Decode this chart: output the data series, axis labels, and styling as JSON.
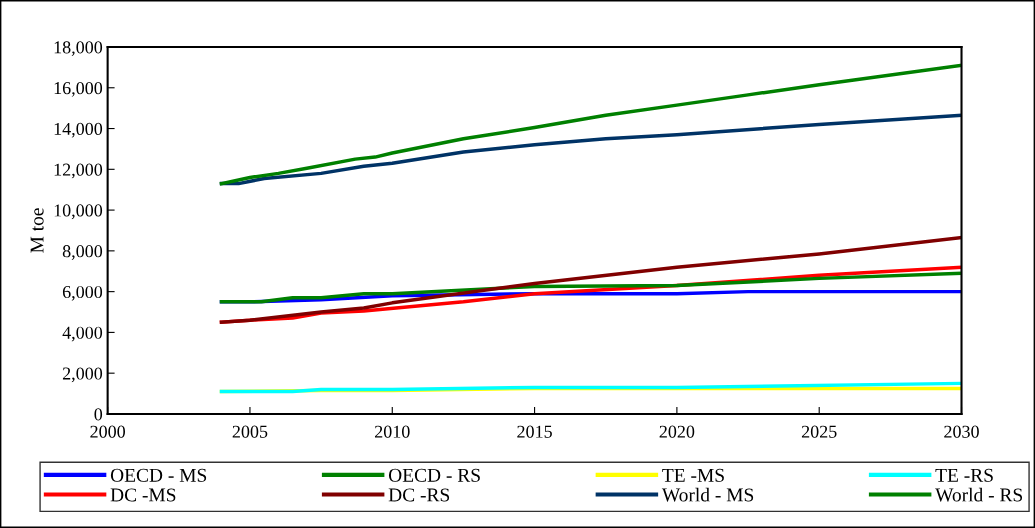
{
  "chart_data": {
    "type": "line",
    "ylabel": "M toe",
    "xlim": [
      2000,
      2030
    ],
    "xticks": [
      2000,
      2005,
      2010,
      2015,
      2020,
      2025,
      2030
    ],
    "ylim": [
      0,
      18000
    ],
    "yticks": [
      {
        "value": 0,
        "label": "0"
      },
      {
        "value": 2000,
        "label": "2,000"
      },
      {
        "value": 4000,
        "label": "4,000"
      },
      {
        "value": 6000,
        "label": "6,000"
      },
      {
        "value": 8000,
        "label": "8,000"
      },
      {
        "value": 10000,
        "label": "10,000"
      },
      {
        "value": 12000,
        "label": "12,000"
      },
      {
        "value": 14000,
        "label": "14,000"
      },
      {
        "value": 16000,
        "label": "16,000"
      },
      {
        "value": 18000,
        "label": "18,000"
      }
    ],
    "grid": false,
    "legend": "bottom",
    "marker": "none",
    "line_style": "solid",
    "series": [
      {
        "name": "OECD - MS",
        "color": "#0000ff",
        "x": [
          2004,
          2005,
          2007.5,
          2010,
          2015,
          2020,
          2022.5,
          2030
        ],
        "values": [
          5500,
          5500,
          5600,
          5800,
          5900,
          5900,
          6000,
          6000
        ]
      },
      {
        "name": "DC -MS",
        "color": "#ff0000",
        "x": [
          2004,
          2005,
          2006.5,
          2007.5,
          2009,
          2012.5,
          2015,
          2020,
          2025,
          2030
        ],
        "values": [
          4500,
          4600,
          4700,
          4950,
          5050,
          5500,
          5900,
          6300,
          6800,
          7200
        ]
      },
      {
        "name": "OECD - RS",
        "color": "#008000",
        "x": [
          2004,
          2005.4,
          2006.5,
          2007.5,
          2009,
          2010,
          2015,
          2020,
          2025,
          2030
        ],
        "values": [
          5500,
          5500,
          5700,
          5700,
          5900,
          5900,
          6250,
          6300,
          6650,
          6900
        ]
      },
      {
        "name": "DC -RS",
        "color": "#800000",
        "x": [
          2004,
          2005,
          2007.5,
          2009,
          2010,
          2015,
          2020,
          2025,
          2030
        ],
        "values": [
          4500,
          4600,
          5000,
          5200,
          5450,
          6400,
          7200,
          7850,
          8650
        ]
      },
      {
        "name": "TE -MS",
        "color": "#ffff00",
        "x": [
          2004,
          2007.5,
          2010,
          2015,
          2030
        ],
        "values": [
          1100,
          1150,
          1150,
          1250,
          1250
        ]
      },
      {
        "name": "World - MS",
        "color": "#003366",
        "x": [
          2004,
          2004.6,
          2005.5,
          2007.5,
          2009,
          2010,
          2012.5,
          2015,
          2017.5,
          2020,
          2025,
          2030
        ],
        "values": [
          11300,
          11300,
          11550,
          11800,
          12150,
          12300,
          12850,
          13200,
          13500,
          13700,
          14200,
          14650
        ]
      },
      {
        "name": "TE -RS",
        "color": "#00ffff",
        "x": [
          2004,
          2006.5,
          2007.5,
          2010,
          2015,
          2020,
          2030
        ],
        "values": [
          1100,
          1100,
          1200,
          1200,
          1300,
          1300,
          1500
        ]
      },
      {
        "name": "World - RS",
        "color": "#008000",
        "x": [
          2004,
          2005,
          2006,
          2007,
          2008.7,
          2009.4,
          2010,
          2012.5,
          2015,
          2017.5,
          2020,
          2022.5,
          2025,
          2030
        ],
        "values": [
          11300,
          11600,
          11800,
          12050,
          12500,
          12600,
          12800,
          13500,
          14050,
          14650,
          15150,
          15650,
          16150,
          17100
        ]
      }
    ]
  }
}
